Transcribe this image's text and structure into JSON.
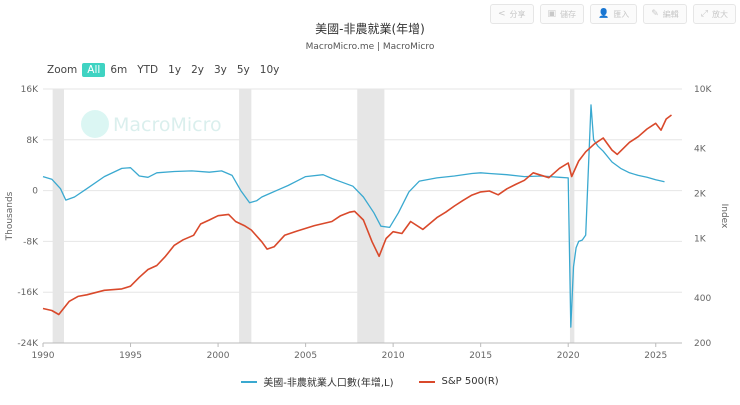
{
  "toolbar": [
    {
      "label": "分享",
      "icon": "share-icon",
      "glyph": "<"
    },
    {
      "label": "儲存",
      "icon": "save-icon",
      "glyph": "▣"
    },
    {
      "label": "匯入",
      "icon": "user-icon",
      "glyph": "👤"
    },
    {
      "label": "編輯",
      "icon": "edit-icon",
      "glyph": "✎"
    },
    {
      "label": "放大",
      "icon": "expand-icon",
      "glyph": "⤢"
    }
  ],
  "zoom": {
    "label": "Zoom",
    "options": [
      "All",
      "6m",
      "YTD",
      "1y",
      "2y",
      "3y",
      "5y",
      "10y"
    ],
    "active": "All"
  },
  "watermark": "MacroMicro",
  "colors": {
    "jobs": "#3aa9d0",
    "sp500": "#d9492b",
    "recession": "#e6e6e6",
    "accent": "#3fd3c2"
  },
  "chart_data": {
    "type": "line",
    "title": "美國-非農就業(年增)",
    "subtitle": "MacroMicro.me | MacroMicro",
    "x_ticks": [
      "1990",
      "1995",
      "2000",
      "2005",
      "2010",
      "2015",
      "2020",
      "2025"
    ],
    "xlim": [
      1990,
      2026.5
    ],
    "left_axis": {
      "title": "Thousands",
      "ticks": [
        "16K",
        "8K",
        "0",
        "-8K",
        "-16K",
        "-24K"
      ],
      "range": [
        -24000,
        16000
      ]
    },
    "right_axis": {
      "title": "Index",
      "ticks": [
        "10K",
        "4K",
        "2K",
        "1K",
        "400",
        "200"
      ],
      "tick_values": [
        10000,
        4000,
        2000,
        1000,
        400,
        200
      ],
      "scale": "log",
      "range": [
        200,
        10000
      ]
    },
    "recessions": [
      [
        1990.55,
        1991.2
      ],
      [
        2001.2,
        2001.9
      ],
      [
        2007.95,
        2009.5
      ],
      [
        2020.1,
        2020.35
      ]
    ],
    "legend_position": "bottom-center",
    "grid": "horizontal",
    "series": [
      {
        "name": "美國-非農就業人口數(年增,L)",
        "axis": "left",
        "color": "#3aa9d0",
        "x": [
          1990.0,
          1990.5,
          1991.0,
          1991.3,
          1991.8,
          1992.5,
          1993.5,
          1994.5,
          1995.0,
          1995.5,
          1996.0,
          1996.5,
          1997.5,
          1998.5,
          1999.5,
          2000.2,
          2000.8,
          2001.3,
          2001.8,
          2002.2,
          2002.5,
          2003.0,
          2003.5,
          2004.0,
          2004.5,
          2005.0,
          2006.0,
          2006.5,
          2007.0,
          2007.7,
          2008.3,
          2008.9,
          2009.3,
          2009.8,
          2010.3,
          2010.9,
          2011.5,
          2012.5,
          2013.5,
          2014.5,
          2015.0,
          2015.5,
          2016.5,
          2017.5,
          2018.5,
          2019.5,
          2020.0,
          2020.15,
          2020.3,
          2020.45,
          2020.6,
          2020.8,
          2021.0,
          2021.3,
          2021.45,
          2021.7,
          2022.0,
          2022.5,
          2023.0,
          2023.5,
          2024.0,
          2024.5,
          2025.0,
          2025.5
        ],
        "values": [
          2200,
          1800,
          300,
          -1500,
          -1000,
          300,
          2200,
          3500,
          3600,
          2300,
          2100,
          2800,
          3000,
          3100,
          2900,
          3100,
          2400,
          0,
          -1900,
          -1600,
          -1000,
          -400,
          200,
          800,
          1500,
          2200,
          2500,
          1900,
          1400,
          700,
          -1000,
          -3500,
          -5600,
          -5800,
          -3500,
          -200,
          1500,
          2000,
          2300,
          2700,
          2800,
          2700,
          2500,
          2200,
          2300,
          2100,
          2000,
          -21500,
          -12000,
          -9000,
          -8000,
          -7800,
          -7000,
          13500,
          8000,
          7000,
          6200,
          4500,
          3500,
          2800,
          2400,
          2100,
          1700,
          1400
        ]
      },
      {
        "name": "S&P 500(R)",
        "axis": "right",
        "color": "#d9492b",
        "x": [
          1990.0,
          1990.5,
          1990.9,
          1991.5,
          1992.0,
          1992.5,
          1993.5,
          1994.5,
          1995.0,
          1995.5,
          1996.0,
          1996.5,
          1997.0,
          1997.5,
          1998.0,
          1998.6,
          1999.0,
          1999.5,
          2000.0,
          2000.6,
          2001.0,
          2001.5,
          2001.9,
          2002.5,
          2002.8,
          2003.2,
          2003.8,
          2004.5,
          2005.5,
          2006.5,
          2007.0,
          2007.5,
          2007.8,
          2008.3,
          2008.8,
          2009.2,
          2009.6,
          2010.0,
          2010.5,
          2011.0,
          2011.7,
          2012.5,
          2013.0,
          2013.5,
          2014.0,
          2014.5,
          2015.0,
          2015.5,
          2016.0,
          2016.5,
          2017.0,
          2017.5,
          2018.0,
          2018.9,
          2019.5,
          2020.0,
          2020.2,
          2020.6,
          2021.0,
          2021.5,
          2022.0,
          2022.5,
          2022.8,
          2023.5,
          2024.0,
          2024.5,
          2025.0,
          2025.3,
          2025.6,
          2025.9
        ],
        "values": [
          340,
          330,
          310,
          380,
          410,
          420,
          450,
          460,
          480,
          550,
          620,
          660,
          760,
          900,
          980,
          1050,
          1250,
          1330,
          1420,
          1450,
          1300,
          1220,
          1140,
          950,
          850,
          880,
          1050,
          1120,
          1220,
          1300,
          1420,
          1500,
          1520,
          1330,
          950,
          760,
          1000,
          1110,
          1080,
          1300,
          1150,
          1380,
          1500,
          1650,
          1800,
          1950,
          2050,
          2080,
          1960,
          2150,
          2300,
          2450,
          2750,
          2550,
          2950,
          3200,
          2600,
          3300,
          3800,
          4300,
          4700,
          3900,
          3650,
          4400,
          4800,
          5400,
          5900,
          5300,
          6300,
          6700
        ]
      }
    ]
  }
}
